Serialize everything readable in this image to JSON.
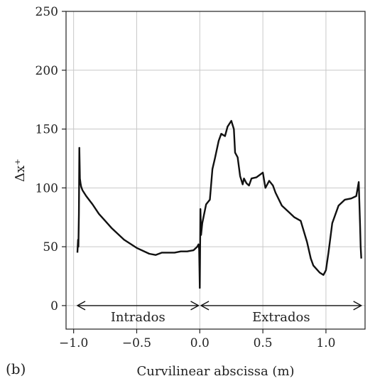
{
  "panel_tag": "(b)",
  "chart_data": {
    "type": "line",
    "title": "",
    "xlabel": "Curvilinear abscissa (m)",
    "ylabel": "Δx⁺",
    "xlim": [
      -1.06,
      1.31
    ],
    "ylim": [
      -20,
      250
    ],
    "grid": true,
    "xticks": [
      -1.0,
      -0.5,
      0.0,
      0.5,
      1.0
    ],
    "xtick_labels": [
      "−1.0",
      "−0.5",
      "0.0",
      "0.5",
      "1.0"
    ],
    "yticks": [
      0,
      50,
      100,
      150,
      200,
      250
    ],
    "ytick_labels": [
      "0",
      "50",
      "100",
      "150",
      "200",
      "250"
    ],
    "series": [
      {
        "x": [
          -0.97,
          -0.965,
          -0.962,
          -0.958,
          -0.955,
          -0.952,
          -0.95,
          -0.945,
          -0.94,
          -0.93,
          -0.9,
          -0.85,
          -0.8,
          -0.75,
          -0.7,
          -0.6,
          -0.5,
          -0.4,
          -0.35,
          -0.3,
          -0.25,
          -0.2,
          -0.15,
          -0.1,
          -0.05,
          -0.02,
          -0.01,
          -0.005,
          0.0,
          0.005,
          0.01,
          0.02,
          0.05,
          0.08,
          0.1,
          0.12,
          0.15,
          0.17,
          0.2,
          0.22,
          0.25,
          0.27,
          0.28,
          0.3,
          0.32,
          0.34,
          0.35,
          0.37,
          0.39,
          0.41,
          0.45,
          0.5,
          0.52,
          0.55,
          0.58,
          0.6,
          0.65,
          0.7,
          0.75,
          0.8,
          0.85,
          0.88,
          0.9,
          0.95,
          0.98,
          1.0,
          1.02,
          1.05,
          1.1,
          1.15,
          1.2,
          1.24,
          1.26,
          1.27,
          1.275,
          1.28
        ],
        "y": [
          45,
          56,
          50,
          78,
          134,
          118,
          108,
          104,
          101,
          98,
          93,
          86,
          78,
          72,
          66,
          56,
          49,
          44,
          43,
          45,
          45,
          45,
          46,
          46,
          47,
          50,
          52,
          48,
          15,
          82,
          60,
          70,
          86,
          90,
          116,
          125,
          140,
          146,
          144,
          152,
          157,
          150,
          130,
          126,
          110,
          103,
          108,
          104,
          102,
          108,
          109,
          113,
          100,
          106,
          102,
          96,
          85,
          80,
          75,
          72,
          54,
          40,
          34,
          28,
          26,
          30,
          45,
          70,
          85,
          90,
          91,
          93,
          105,
          70,
          50,
          40
        ]
      }
    ],
    "annotations": [
      {
        "text": "Intrados",
        "x_start": -0.97,
        "x_end": -0.01,
        "y": 0
      },
      {
        "text": "Extrados",
        "x_start": 0.01,
        "x_end": 1.28,
        "y": 0
      }
    ]
  }
}
